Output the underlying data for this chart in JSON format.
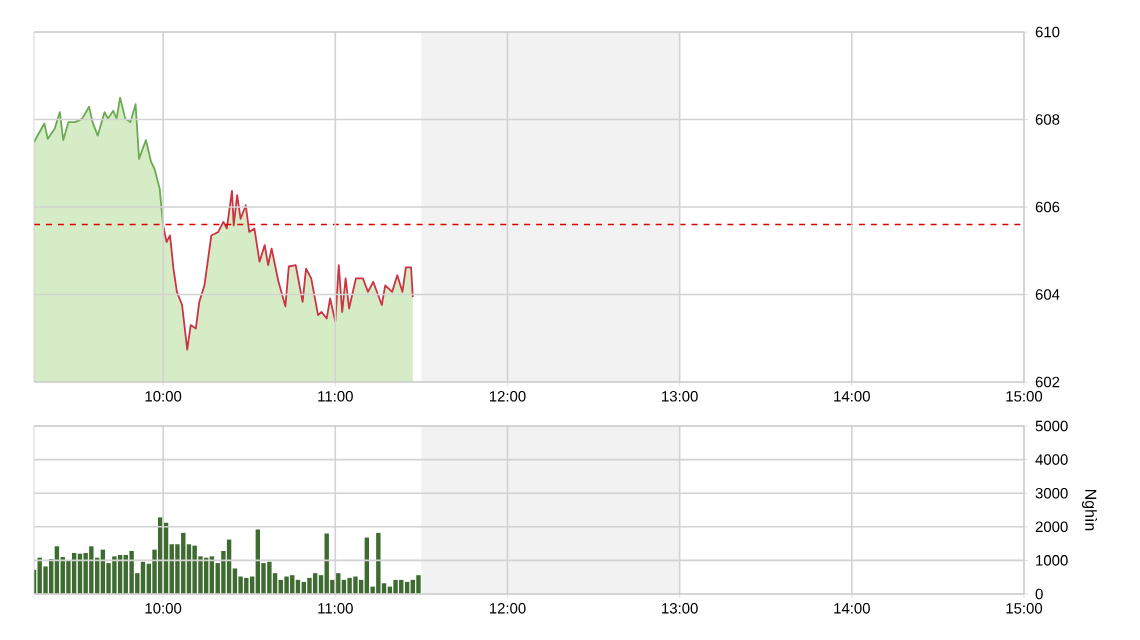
{
  "chart_data": [
    {
      "type": "area",
      "xlim": [
        9.25,
        15
      ],
      "xticks": [
        {
          "value": 10,
          "label": "10:00"
        },
        {
          "value": 11,
          "label": "11:00"
        },
        {
          "value": 12,
          "label": "12:00"
        },
        {
          "value": 13,
          "label": "13:00"
        },
        {
          "value": 14,
          "label": "14:00"
        },
        {
          "value": 15,
          "label": "15:00"
        }
      ],
      "ylim": [
        602,
        610
      ],
      "yticks": [
        602,
        604,
        606,
        608,
        610
      ],
      "grid": true,
      "ref_lines": [
        {
          "axis": "y",
          "value": 605.6,
          "color": "#dd0000",
          "line_style": "dashed"
        }
      ],
      "bands": [
        {
          "axis": "x",
          "from": 11.5,
          "to": 13,
          "color": "#f2f2f2"
        }
      ],
      "series": [
        {
          "color": "#6aaa50",
          "x": [
            9.25,
            9.27,
            9.31,
            9.33,
            9.37,
            9.4,
            9.42,
            9.45,
            9.49,
            9.53,
            9.57,
            9.59,
            9.62,
            9.66,
            9.68,
            9.71,
            9.73,
            9.75,
            9.78,
            9.81,
            9.84,
            9.86,
            9.9,
            9.93,
            9.95,
            9.98,
            10.0
          ],
          "values": [
            607.48,
            607.63,
            607.91,
            607.56,
            607.79,
            608.17,
            607.53,
            607.94,
            607.94,
            608.02,
            608.29,
            607.94,
            607.63,
            608.17,
            608.02,
            608.2,
            608.02,
            608.5,
            608.02,
            607.94,
            608.35,
            607.1,
            607.53,
            607.03,
            606.87,
            606.42,
            605.58
          ]
        },
        {
          "color": "#cc3344",
          "x": [
            10.0,
            10.02,
            10.04,
            10.06,
            10.08,
            10.11,
            10.14,
            10.16,
            10.19,
            10.21,
            10.24,
            10.28,
            10.32,
            10.35,
            10.37,
            10.4,
            10.41,
            10.43,
            10.45,
            10.48,
            10.5,
            10.53,
            10.56,
            10.59,
            10.61,
            10.63,
            10.67,
            10.71,
            10.73,
            10.77,
            10.81,
            10.83,
            10.86,
            10.9,
            10.92,
            10.95,
            10.97,
            11.0,
            11.02,
            11.04,
            11.06,
            11.08,
            11.12,
            11.16,
            11.19,
            11.22,
            11.27,
            11.29,
            11.33,
            11.36,
            11.39,
            11.41,
            11.44,
            11.45
          ],
          "values": [
            605.58,
            605.2,
            605.35,
            604.59,
            604.06,
            603.76,
            602.74,
            603.3,
            603.22,
            603.83,
            604.21,
            605.35,
            605.43,
            605.66,
            605.51,
            606.37,
            605.58,
            606.27,
            605.73,
            606.04,
            605.43,
            605.51,
            604.75,
            605.13,
            604.67,
            605.05,
            604.29,
            603.73,
            604.64,
            604.67,
            603.83,
            604.59,
            604.37,
            603.53,
            603.6,
            603.45,
            603.91,
            603.38,
            604.67,
            603.6,
            604.37,
            603.68,
            604.37,
            604.37,
            604.06,
            604.29,
            603.76,
            604.21,
            604.06,
            604.44,
            604.06,
            604.62,
            604.62,
            603.94
          ]
        }
      ]
    },
    {
      "type": "bar",
      "ylabel": "Nghìn",
      "color": "#3d6b30",
      "xlim": [
        9.25,
        15
      ],
      "xticks": [
        {
          "value": 10,
          "label": "10:00"
        },
        {
          "value": 11,
          "label": "11:00"
        },
        {
          "value": 12,
          "label": "12:00"
        },
        {
          "value": 13,
          "label": "13:00"
        },
        {
          "value": 14,
          "label": "14:00"
        },
        {
          "value": 15,
          "label": "15:00"
        }
      ],
      "ylim": [
        0,
        5000
      ],
      "yticks": [
        0,
        1000,
        2000,
        3000,
        4000,
        5000
      ],
      "grid": true,
      "bands": [
        {
          "axis": "x",
          "from": 11.5,
          "to": 13,
          "color": "#f2f2f2"
        }
      ],
      "x": [
        9.25,
        9.283,
        9.317,
        9.35,
        9.383,
        9.417,
        9.45,
        9.483,
        9.517,
        9.55,
        9.583,
        9.617,
        9.65,
        9.683,
        9.717,
        9.75,
        9.783,
        9.817,
        9.85,
        9.883,
        9.917,
        9.95,
        9.983,
        10.017,
        10.05,
        10.083,
        10.117,
        10.15,
        10.183,
        10.217,
        10.25,
        10.283,
        10.317,
        10.35,
        10.383,
        10.417,
        10.45,
        10.483,
        10.517,
        10.55,
        10.583,
        10.617,
        10.65,
        10.683,
        10.717,
        10.75,
        10.783,
        10.817,
        10.85,
        10.883,
        10.917,
        10.95,
        10.983,
        11.017,
        11.05,
        11.083,
        11.117,
        11.15,
        11.183,
        11.217,
        11.25,
        11.283,
        11.317,
        11.35,
        11.383,
        11.417,
        11.45,
        11.483
      ],
      "values": [
        720,
        1080,
        820,
        1040,
        1420,
        1100,
        1000,
        1220,
        1200,
        1220,
        1420,
        1080,
        1320,
        920,
        1120,
        1160,
        1160,
        1280,
        620,
        960,
        900,
        1320,
        2280,
        2120,
        1480,
        1480,
        1820,
        1480,
        1440,
        1120,
        1080,
        1120,
        920,
        1280,
        1620,
        760,
        520,
        480,
        520,
        1920,
        920,
        960,
        620,
        420,
        520,
        560,
        420,
        360,
        480,
        620,
        560,
        1800,
        420,
        620,
        420,
        480,
        520,
        420,
        1680,
        220,
        1820,
        320,
        220,
        420,
        420,
        360,
        420,
        560
      ]
    }
  ]
}
